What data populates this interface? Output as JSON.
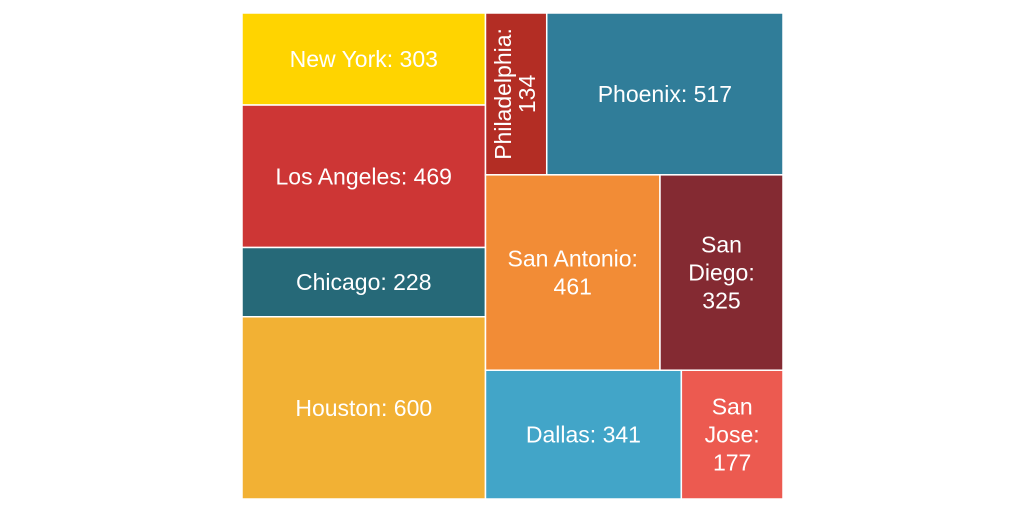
{
  "chart_data": {
    "type": "treemap",
    "title": "",
    "items": [
      {
        "name": "New York",
        "value": 303,
        "color": "#FFD400"
      },
      {
        "name": "Los Angeles",
        "value": 469,
        "color": "#CD3635"
      },
      {
        "name": "Chicago",
        "value": 228,
        "color": "#266978"
      },
      {
        "name": "Houston",
        "value": 600,
        "color": "#F2B134"
      },
      {
        "name": "Philadelphia",
        "value": 134,
        "color": "#B32D24"
      },
      {
        "name": "Phoenix",
        "value": 517,
        "color": "#307D99"
      },
      {
        "name": "San Antonio",
        "value": 461,
        "color": "#F28C36"
      },
      {
        "name": "San Diego",
        "value": 325,
        "color": "#842A32"
      },
      {
        "name": "Dallas",
        "value": 341,
        "color": "#42A5C8"
      },
      {
        "name": "San Jose",
        "value": 177,
        "color": "#EC5A50"
      }
    ]
  }
}
